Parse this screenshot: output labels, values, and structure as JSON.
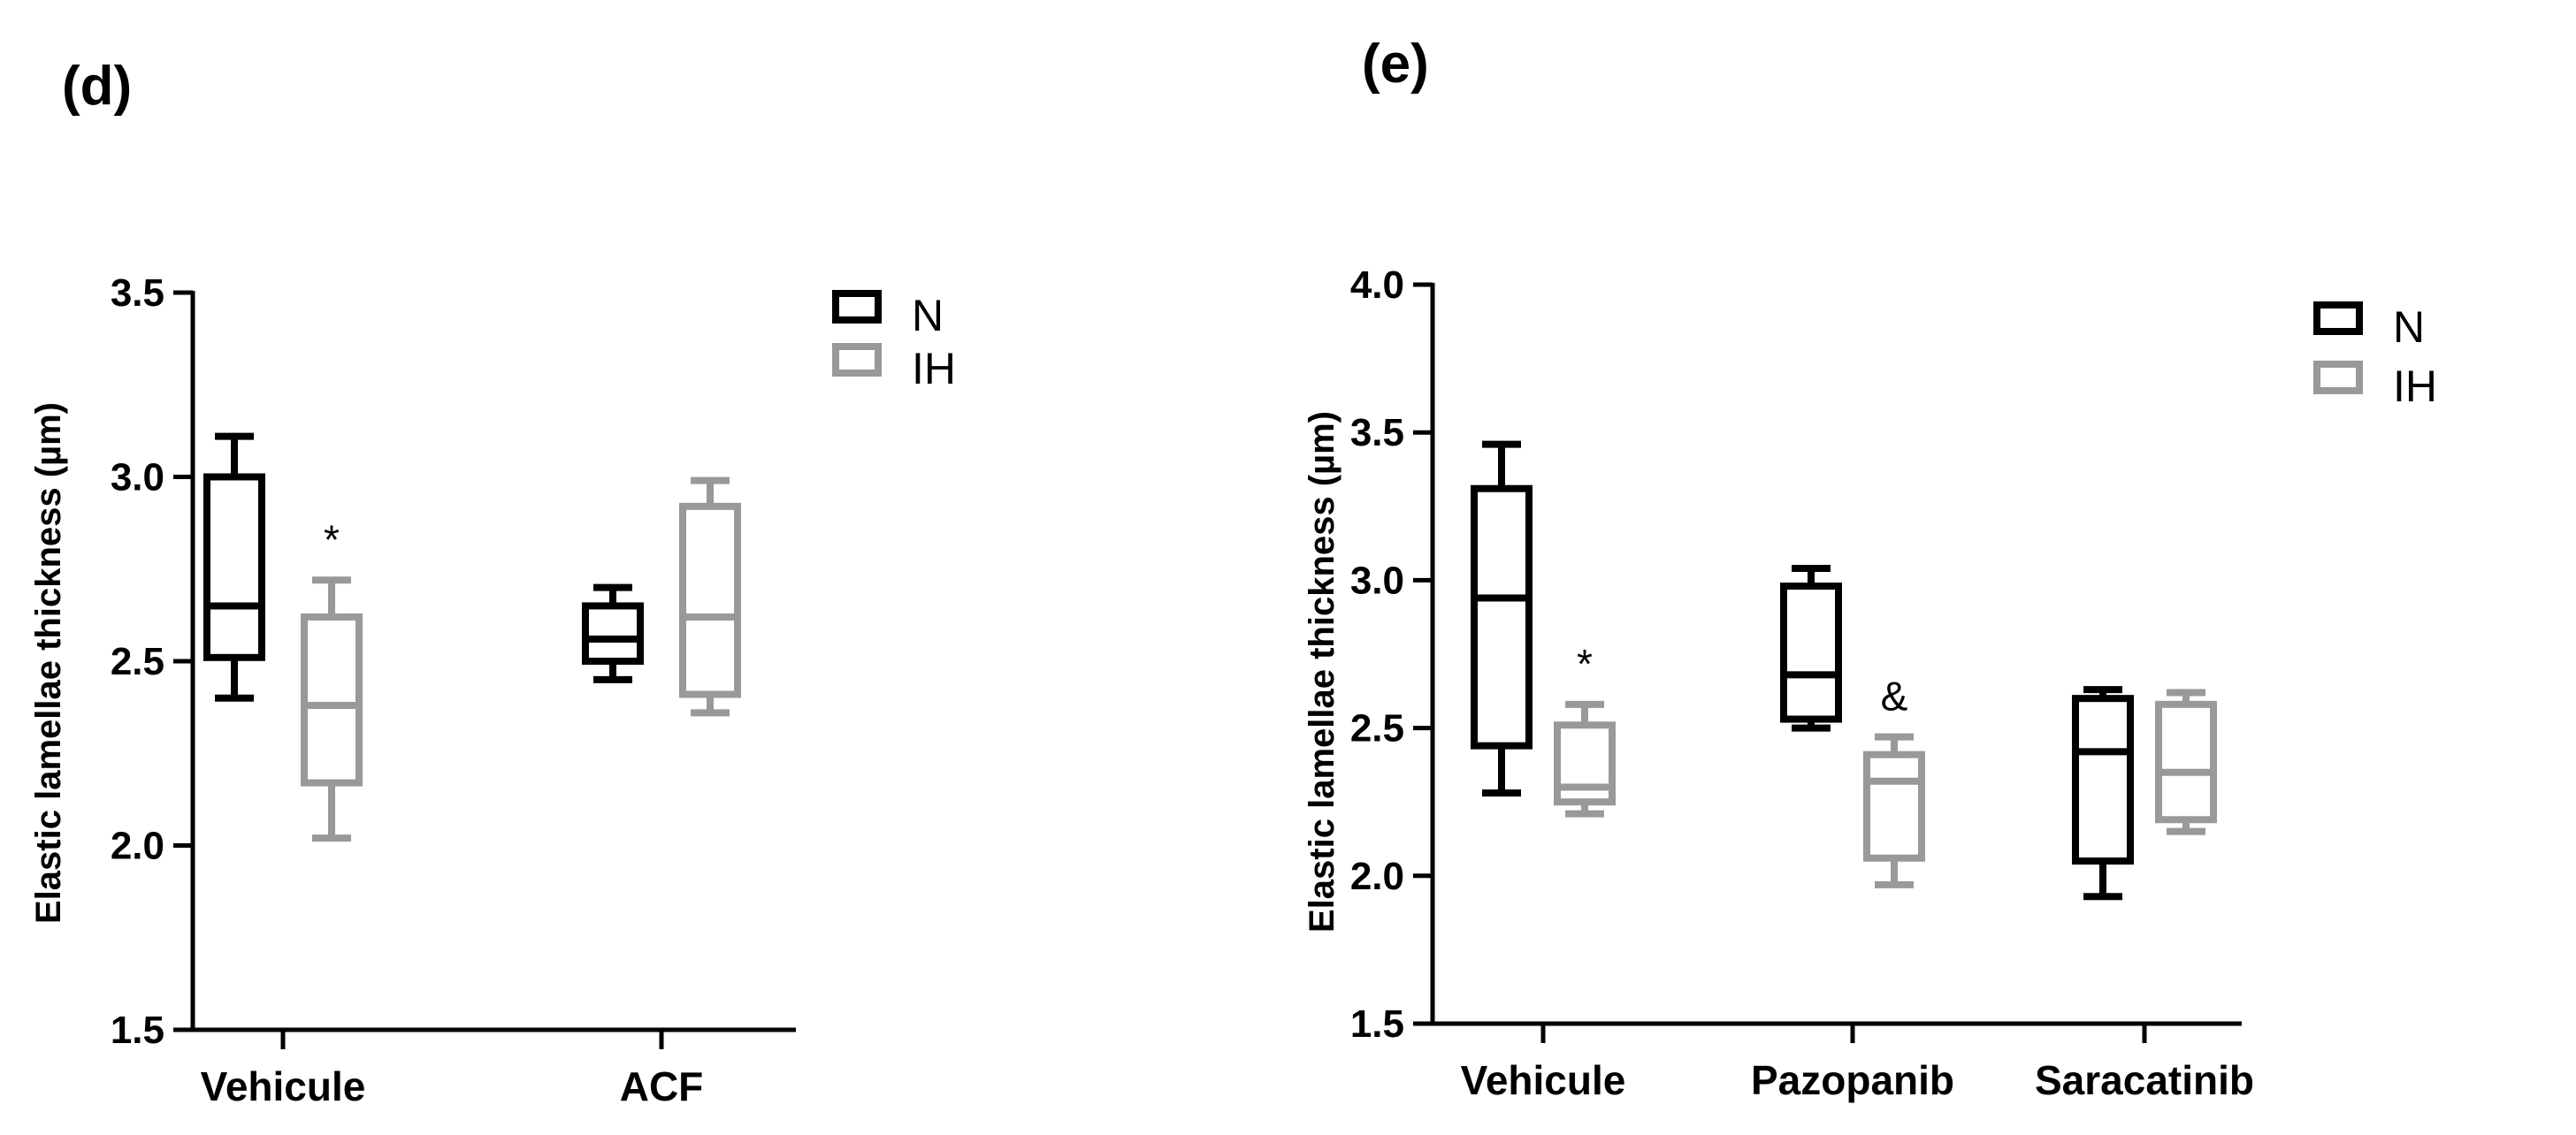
{
  "chart_data": [
    {
      "type": "box",
      "panel_label": "(d)",
      "ylabel": "Elastic lamellae thickness (µm)",
      "xlabel": "",
      "ylim": [
        1.5,
        3.5
      ],
      "yticks": [
        "1.5",
        "2.0",
        "2.5",
        "3.0",
        "3.5"
      ],
      "categories": [
        "Vehicule",
        "ACF"
      ],
      "legend": {
        "position": "top-right",
        "entries": [
          "N",
          "IH"
        ]
      },
      "series": [
        {
          "name": "N",
          "color": "#000000",
          "boxes": [
            {
              "min": 2.4,
              "q1": 2.51,
              "median": 2.65,
              "q3": 3.0,
              "max": 3.11
            },
            {
              "min": 2.45,
              "q1": 2.5,
              "median": 2.56,
              "q3": 2.65,
              "max": 2.7
            }
          ]
        },
        {
          "name": "IH",
          "color": "#999999",
          "boxes": [
            {
              "min": 2.02,
              "q1": 2.17,
              "median": 2.38,
              "q3": 2.62,
              "max": 2.72
            },
            {
              "min": 2.36,
              "q1": 2.41,
              "median": 2.62,
              "q3": 2.92,
              "max": 2.99
            }
          ]
        }
      ],
      "annotations": [
        {
          "text": "*",
          "category": "Vehicule",
          "series": "IH"
        }
      ]
    },
    {
      "type": "box",
      "panel_label": "(e)",
      "ylabel": "Elastic lamellae thickness (µm)",
      "xlabel": "",
      "ylim": [
        1.5,
        4.0
      ],
      "yticks": [
        "1.5",
        "2.0",
        "2.5",
        "3.0",
        "3.5",
        "4.0"
      ],
      "categories": [
        "Vehicule",
        "Pazopanib",
        "Saracatinib"
      ],
      "legend": {
        "position": "top-right",
        "entries": [
          "N",
          "IH"
        ]
      },
      "series": [
        {
          "name": "N",
          "color": "#000000",
          "boxes": [
            {
              "min": 2.28,
              "q1": 2.44,
              "median": 2.94,
              "q3": 3.31,
              "max": 3.46
            },
            {
              "min": 2.5,
              "q1": 2.53,
              "median": 2.68,
              "q3": 2.98,
              "max": 3.04
            },
            {
              "min": 1.93,
              "q1": 2.05,
              "median": 2.42,
              "q3": 2.6,
              "max": 2.63
            }
          ]
        },
        {
          "name": "IH",
          "color": "#999999",
          "boxes": [
            {
              "min": 2.21,
              "q1": 2.25,
              "median": 2.3,
              "q3": 2.51,
              "max": 2.58
            },
            {
              "min": 1.97,
              "q1": 2.06,
              "median": 2.32,
              "q3": 2.41,
              "max": 2.47
            },
            {
              "min": 2.15,
              "q1": 2.19,
              "median": 2.35,
              "q3": 2.58,
              "max": 2.62
            }
          ]
        }
      ],
      "annotations": [
        {
          "text": "*",
          "category": "Vehicule",
          "series": "IH"
        },
        {
          "text": "&",
          "category": "Pazopanib",
          "series": "IH"
        }
      ]
    }
  ]
}
